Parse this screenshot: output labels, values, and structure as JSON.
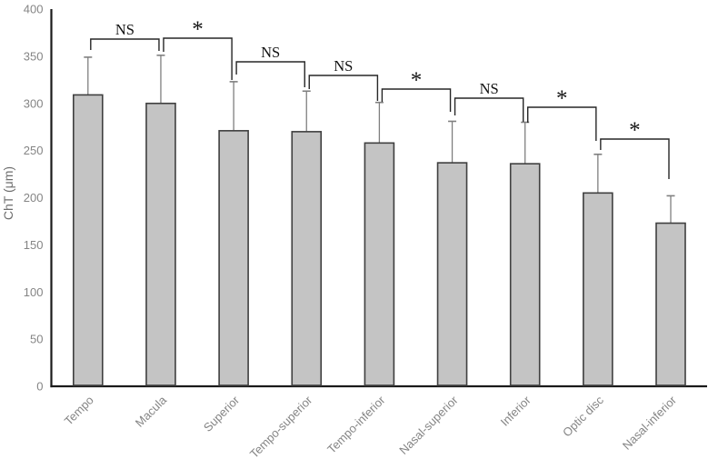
{
  "chart_data": {
    "type": "bar",
    "title": "",
    "xlabel": "",
    "ylabel": "ChT (μm)",
    "ylim": [
      0,
      400
    ],
    "ytick_step": 50,
    "yticks": [
      0,
      50,
      100,
      150,
      200,
      250,
      300,
      350,
      400
    ],
    "grid": false,
    "legend": null,
    "categories": [
      "Tempo",
      "Macula",
      "Superior",
      "Tempo-superior",
      "Tempo-inferior",
      "Nasal-superior",
      "Inferior",
      "Optic disc",
      "Nasal-inferior"
    ],
    "values": [
      309,
      300,
      271,
      270,
      258,
      237,
      236,
      205,
      173
    ],
    "errors": [
      40,
      51,
      52,
      43,
      43,
      44,
      44,
      41,
      29
    ],
    "error_direction": "upper",
    "significance": [
      {
        "from": "Tempo",
        "to": "Macula",
        "label": "NS"
      },
      {
        "from": "Macula",
        "to": "Superior",
        "label": "*"
      },
      {
        "from": "Superior",
        "to": "Tempo-superior",
        "label": "NS"
      },
      {
        "from": "Tempo-superior",
        "to": "Tempo-inferior",
        "label": "NS"
      },
      {
        "from": "Tempo-inferior",
        "to": "Nasal-superior",
        "label": "*"
      },
      {
        "from": "Nasal-superior",
        "to": "Inferior",
        "label": "NS"
      },
      {
        "from": "Inferior",
        "to": "Optic disc",
        "label": "*"
      },
      {
        "from": "Optic disc",
        "to": "Nasal-inferior",
        "label": "*"
      }
    ],
    "colors": {
      "bar_fill": "#c4c4c4",
      "bar_border": "#3f3f3f",
      "error_bar": "#7f7f7f",
      "axis_line": "#1a1a1a",
      "tick_label": "#858585",
      "axis_title": "#6e6e6e",
      "bracket": "#262626",
      "sig_label": "#111111"
    }
  }
}
